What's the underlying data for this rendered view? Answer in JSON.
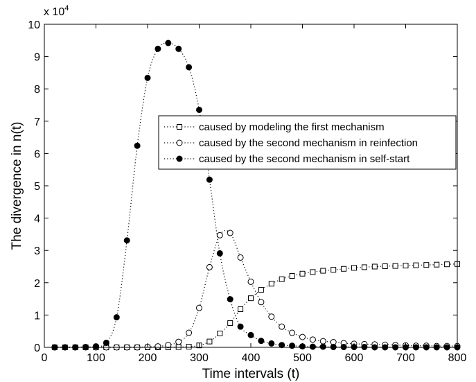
{
  "chart_data": {
    "type": "line",
    "title": "",
    "xlabel": "Time intervals (t)",
    "ylabel": "The divergence in n(t)",
    "y_multiplier": {
      "base": "x 10",
      "exponent": "4"
    },
    "xlim": [
      0,
      800
    ],
    "ylim": [
      0,
      10
    ],
    "x_ticks": [
      "0",
      "100",
      "200",
      "300",
      "400",
      "500",
      "600",
      "700",
      "800"
    ],
    "y_ticks": [
      "0",
      "1",
      "2",
      "3",
      "4",
      "5",
      "6",
      "7",
      "8",
      "9",
      "10"
    ],
    "grid": false,
    "legend_position": "center-right",
    "x": [
      20,
      40,
      60,
      80,
      100,
      120,
      140,
      160,
      180,
      200,
      220,
      240,
      260,
      280,
      300,
      320,
      340,
      360,
      380,
      400,
      420,
      440,
      460,
      480,
      500,
      520,
      540,
      560,
      580,
      600,
      620,
      640,
      660,
      680,
      700,
      720,
      740,
      760,
      780,
      800
    ],
    "series": [
      {
        "name": "caused by modeling the first mechanism",
        "marker": "square-open",
        "values": [
          0,
          0,
          0,
          0,
          0,
          0,
          0,
          0,
          0,
          0,
          0,
          0,
          0.01,
          0.02,
          0.06,
          0.18,
          0.43,
          0.75,
          1.18,
          1.52,
          1.78,
          1.97,
          2.11,
          2.21,
          2.28,
          2.33,
          2.37,
          2.4,
          2.43,
          2.46,
          2.48,
          2.5,
          2.51,
          2.52,
          2.53,
          2.54,
          2.55,
          2.56,
          2.57,
          2.58
        ]
      },
      {
        "name": "caused by the second mechanism in reinfection",
        "marker": "circle-open",
        "values": [
          0,
          0,
          0,
          0,
          0,
          0,
          0,
          0,
          0,
          0.01,
          0.03,
          0.07,
          0.17,
          0.45,
          1.22,
          2.48,
          3.47,
          3.54,
          2.78,
          2.03,
          1.4,
          0.95,
          0.64,
          0.45,
          0.32,
          0.24,
          0.19,
          0.16,
          0.13,
          0.11,
          0.1,
          0.09,
          0.08,
          0.07,
          0.06,
          0.05,
          0.05,
          0.04,
          0.04,
          0.04
        ]
      },
      {
        "name": "caused by the second mechanism in self-start",
        "marker": "circle-filled",
        "values": [
          0,
          0,
          0,
          0.01,
          0.03,
          0.14,
          0.93,
          3.31,
          6.24,
          8.34,
          9.24,
          9.42,
          9.24,
          8.67,
          7.35,
          5.19,
          2.91,
          1.49,
          0.64,
          0.38,
          0.2,
          0.12,
          0.07,
          0.05,
          0.03,
          0.02,
          0.02,
          0.01,
          0.01,
          0.01,
          0.01,
          0,
          0,
          0,
          0,
          0,
          0,
          0,
          0,
          0
        ]
      }
    ]
  }
}
